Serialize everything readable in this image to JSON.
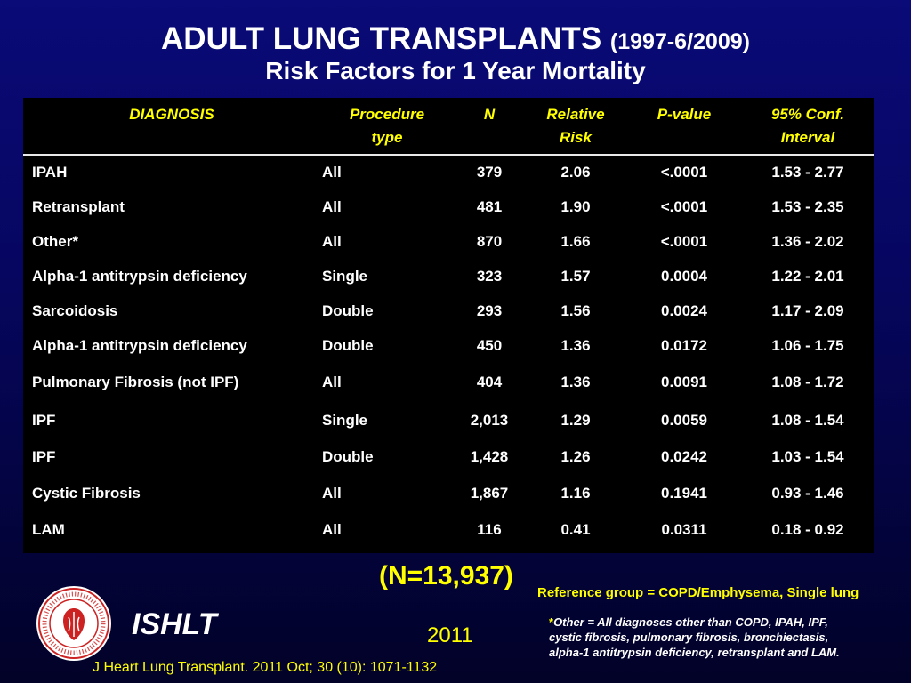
{
  "header": {
    "title": "ADULT LUNG TRANSPLANTS",
    "title_years": "(1997-6/2009)",
    "subtitle": "Risk Factors for 1 Year Mortality"
  },
  "table": {
    "columns": [
      {
        "line1": "DIAGNOSIS",
        "line2": ""
      },
      {
        "line1": "Procedure",
        "line2": "type"
      },
      {
        "line1": "N",
        "line2": ""
      },
      {
        "line1": "Relative",
        "line2": "Risk"
      },
      {
        "line1": "P-value",
        "line2": ""
      },
      {
        "line1": "95% Conf.",
        "line2": "Interval"
      }
    ],
    "rows": [
      [
        "IPAH",
        "All",
        "379",
        "2.06",
        "<.0001",
        "1.53 - 2.77"
      ],
      [
        "Retransplant",
        "All",
        "481",
        "1.90",
        "<.0001",
        "1.53 - 2.35"
      ],
      [
        "Other*",
        "All",
        "870",
        "1.66",
        "<.0001",
        "1.36 - 2.02"
      ],
      [
        "Alpha-1 antitrypsin deficiency",
        "Single",
        "323",
        "1.57",
        "0.0004",
        "1.22 - 2.01"
      ],
      [
        "Sarcoidosis",
        "Double",
        "293",
        "1.56",
        "0.0024",
        "1.17 - 2.09"
      ],
      [
        "Alpha-1 antitrypsin deficiency",
        "Double",
        "450",
        "1.36",
        "0.0172",
        "1.06 - 1.75"
      ],
      [
        "Pulmonary Fibrosis (not IPF)",
        "All",
        "404",
        "1.36",
        "0.0091",
        "1.08 - 1.72"
      ],
      [
        "IPF",
        "Single",
        "2,013",
        "1.29",
        "0.0059",
        "1.08 - 1.54"
      ],
      [
        "IPF",
        "Double",
        "1,428",
        "1.26",
        "0.0242",
        "1.03 - 1.54"
      ],
      [
        "Cystic Fibrosis",
        "All",
        "1,867",
        "1.16",
        "0.1941",
        "0.93 - 1.46"
      ],
      [
        "LAM",
        "All",
        "116",
        "0.41",
        "0.0311",
        "0.18 - 0.92"
      ]
    ]
  },
  "total_n": "(N=13,937)",
  "reference_note": "Reference group = COPD/Emphysema, Single lung",
  "footnote": {
    "star": "*",
    "line1": "Other = All diagnoses other than COPD, IPAH, IPF,",
    "line2": "cystic fibrosis, pulmonary fibrosis, bronchiectasis,",
    "line3": "alpha-1 antitrypsin deficiency, retransplant and LAM."
  },
  "branding": {
    "logo_icon": "ishlt-seal-icon",
    "name": "ISHLT",
    "year": "2011",
    "citation": "J Heart Lung Transplant. 2011 Oct; 30 (10): 1071-1132"
  },
  "colors": {
    "background": "#06066a",
    "accent_text": "#ffff00",
    "table_bg": "#000000",
    "logo_red": "#cc2222"
  }
}
